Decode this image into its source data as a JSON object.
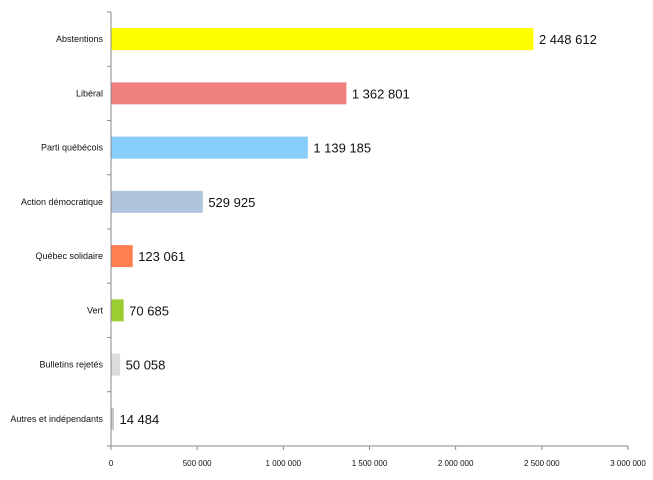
{
  "chart_data": {
    "type": "bar",
    "orientation": "horizontal",
    "categories": [
      "Abstentions",
      "Libéral",
      "Parti québécois",
      "Action démocratique",
      "Québec solidaire",
      "Vert",
      "Bulletins rejetés",
      "Autres et indépendants"
    ],
    "values": [
      2448612,
      1362801,
      1139185,
      529925,
      123061,
      70685,
      50058,
      14484
    ],
    "value_labels": [
      "2 448 612",
      "1 362 801",
      "1 139 185",
      "529 925",
      "123 061",
      "70 685",
      "50 058",
      "14 484"
    ],
    "colors": [
      "#ffff00",
      "#f08080",
      "#87cefa",
      "#b0c4de",
      "#ff7f50",
      "#9acd32",
      "#dcdcdc",
      "#c8c8c8"
    ],
    "xlim": [
      0,
      3000000
    ],
    "x_ticks": [
      0,
      500000,
      1000000,
      1500000,
      2000000,
      2500000,
      3000000
    ],
    "x_tick_labels": [
      "0",
      "500 000",
      "1 000 000",
      "1 500 000",
      "2 000 000",
      "2 500 000",
      "3 000 000"
    ],
    "grid": false,
    "legend": "none"
  }
}
